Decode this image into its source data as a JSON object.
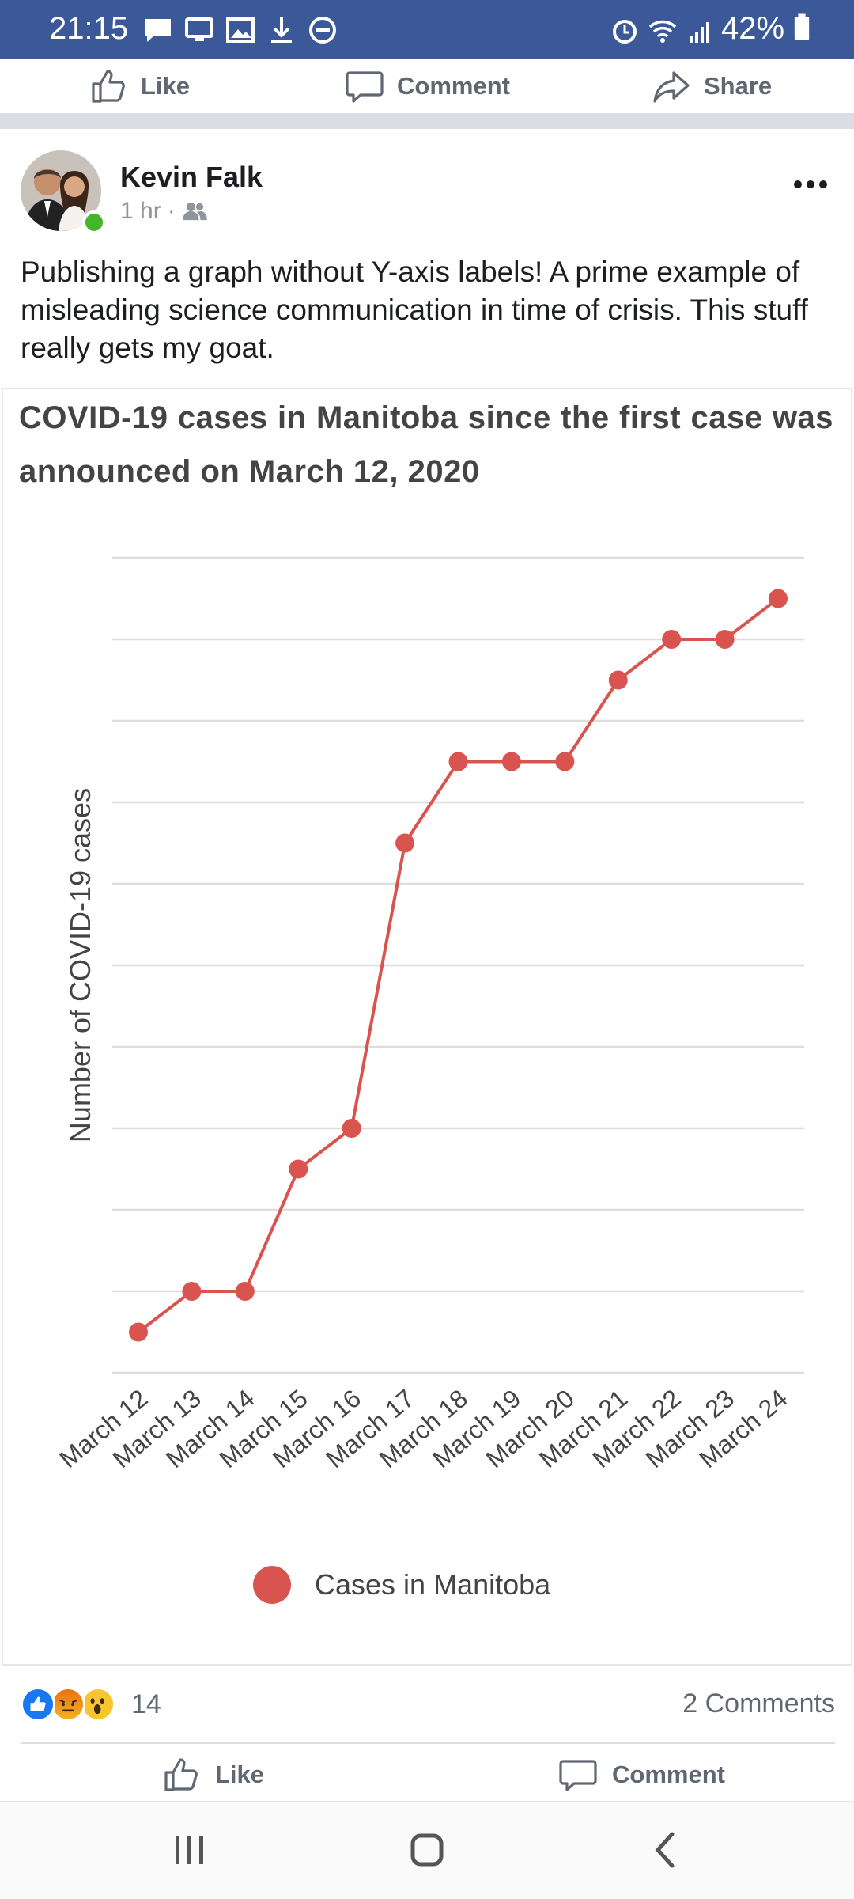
{
  "status_bar": {
    "time": "21:15",
    "battery": "42%",
    "left_icons": [
      "chat-icon",
      "cast-icon",
      "image-icon",
      "download-icon",
      "do-not-disturb-icon"
    ],
    "right_icons": [
      "alarm-icon",
      "wifi-icon",
      "signal-icon",
      "battery-icon"
    ]
  },
  "top_actions": {
    "like": "Like",
    "comment": "Comment",
    "share": "Share"
  },
  "post": {
    "author": "Kevin Falk",
    "time": "1 hr",
    "separator": "·",
    "audience_icon": "friends-icon",
    "text": "Publishing a graph without Y-axis labels! A prime example of misleading science communication in time of crisis. This stuff really gets my goat."
  },
  "chart": {
    "title": "COVID-19 cases in Manitoba since the first case was announced on March 12, 2020"
  },
  "chart_data": {
    "type": "line",
    "title": "COVID-19 cases in Manitoba since the first case was announced on March 12, 2020",
    "xlabel": "",
    "ylabel": "Number of COVID-19 cases",
    "categories": [
      "March 12",
      "March 13",
      "March 14",
      "March 15",
      "March 16",
      "March 17",
      "March 18",
      "March 19",
      "March 20",
      "March 21",
      "March 22",
      "March 23",
      "March 24"
    ],
    "series": [
      {
        "name": "Cases in Manitoba",
        "values": [
          0.5,
          1,
          1,
          2.5,
          3,
          6.5,
          7.5,
          7.5,
          7.5,
          8.5,
          9,
          9,
          9.5
        ]
      }
    ],
    "ylim": [
      0,
      10
    ],
    "y_tick_labels_shown": false,
    "grid": true,
    "legend": "bottom",
    "colors": {
      "series": "#d9534f",
      "grid": "#dddddd",
      "text": "#444444"
    }
  },
  "reactions": {
    "icons": [
      "like-reaction-icon",
      "angry-reaction-icon",
      "wow-reaction-icon"
    ],
    "count": "14",
    "comments": "2 Comments"
  },
  "bottom_actions": {
    "like": "Like",
    "comment": "Comment"
  },
  "nav": {
    "icons": [
      "recent-apps-icon",
      "home-icon",
      "back-icon"
    ]
  },
  "colors": {
    "statusbar": "#3b5998",
    "like_blue": "#1877f2",
    "online_green": "#42b72a"
  }
}
